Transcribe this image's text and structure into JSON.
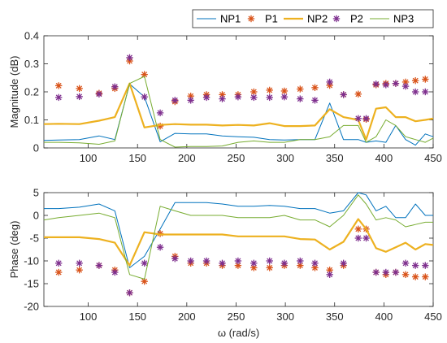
{
  "chart_data": [
    {
      "type": "line",
      "ylabel": "Magnitude (dB)",
      "ylim": [
        0,
        0.4
      ],
      "yticks": [
        "0",
        "0.1",
        "0.2",
        "0.3",
        "0.4"
      ],
      "xticks": [
        {
          "label": "100",
          "value": 100
        },
        {
          "label": "150",
          "value": 150
        },
        {
          "label": "200",
          "value": 200
        },
        {
          "label": "250",
          "value": 250
        },
        {
          "label": "300",
          "value": 300
        },
        {
          "label": "350",
          "value": 350
        },
        {
          "label": "400",
          "value": 400
        },
        {
          "label": "450",
          "value": 450
        }
      ],
      "xlim": [
        55,
        450
      ],
      "series": [
        {
          "name": "NP1",
          "kind": "line",
          "color": "#0072BD",
          "width": 1,
          "x": [
            55,
            70,
            91,
            111,
            127,
            142,
            157,
            173,
            188,
            204,
            220,
            236,
            252,
            268,
            284,
            299,
            315,
            330,
            345,
            359,
            374,
            382,
            392,
            402,
            412,
            422,
            432,
            442,
            450
          ],
          "y": [
            0.027,
            0.028,
            0.03,
            0.043,
            0.03,
            0.228,
            0.182,
            0.022,
            0.052,
            0.05,
            0.05,
            0.043,
            0.04,
            0.038,
            0.03,
            0.028,
            0.03,
            0.03,
            0.16,
            0.03,
            0.03,
            0.02,
            0.025,
            0.02,
            0.08,
            0.03,
            0.01,
            0.05,
            0.04
          ]
        },
        {
          "name": "P1",
          "kind": "star",
          "color": "#D95319",
          "x": [
            70,
            91,
            111,
            127,
            142,
            157,
            173,
            188,
            204,
            220,
            236,
            252,
            268,
            284,
            299,
            315,
            330,
            345,
            359,
            374,
            382,
            392,
            402,
            412,
            422,
            432,
            442
          ],
          "y": [
            0.222,
            0.212,
            0.195,
            0.212,
            0.31,
            0.262,
            0.078,
            0.165,
            0.185,
            0.19,
            0.19,
            0.19,
            0.2,
            0.206,
            0.203,
            0.21,
            0.215,
            0.223,
            0.19,
            0.192,
            0.102,
            0.225,
            0.23,
            0.23,
            0.235,
            0.24,
            0.245
          ]
        },
        {
          "name": "NP2",
          "kind": "line",
          "color": "#EDB120",
          "width": 2.2,
          "x": [
            55,
            70,
            91,
            111,
            127,
            142,
            157,
            173,
            188,
            204,
            220,
            236,
            252,
            268,
            284,
            299,
            315,
            330,
            345,
            359,
            374,
            382,
            392,
            402,
            412,
            422,
            432,
            442,
            450
          ],
          "y": [
            0.085,
            0.086,
            0.085,
            0.097,
            0.11,
            0.23,
            0.073,
            0.082,
            0.085,
            0.083,
            0.083,
            0.08,
            0.082,
            0.08,
            0.088,
            0.078,
            0.078,
            0.08,
            0.138,
            0.11,
            0.1,
            0.03,
            0.14,
            0.145,
            0.11,
            0.11,
            0.095,
            0.1,
            0.105
          ]
        },
        {
          "name": "P2",
          "kind": "star",
          "color": "#7E2F8E",
          "x": [
            70,
            91,
            111,
            127,
            142,
            157,
            173,
            188,
            204,
            220,
            236,
            252,
            268,
            284,
            299,
            315,
            330,
            345,
            359,
            374,
            382,
            392,
            402,
            412,
            422,
            432,
            442
          ],
          "y": [
            0.18,
            0.183,
            0.192,
            0.218,
            0.322,
            0.182,
            0.125,
            0.17,
            0.17,
            0.18,
            0.175,
            0.182,
            0.18,
            0.18,
            0.182,
            0.175,
            0.17,
            0.235,
            0.19,
            0.105,
            0.105,
            0.228,
            0.225,
            0.23,
            0.22,
            0.2,
            0.2
          ]
        },
        {
          "name": "NP3",
          "kind": "line",
          "color": "#77AC30",
          "width": 1,
          "x": [
            55,
            70,
            91,
            111,
            127,
            142,
            157,
            173,
            188,
            204,
            220,
            236,
            252,
            268,
            284,
            299,
            315,
            330,
            345,
            359,
            374,
            382,
            392,
            402,
            412,
            422,
            432,
            442,
            450
          ],
          "y": [
            0.02,
            0.02,
            0.018,
            0.013,
            0.025,
            0.23,
            0.255,
            0.03,
            0.003,
            0.005,
            0.005,
            0.007,
            0.02,
            0.025,
            0.02,
            0.02,
            0.03,
            0.03,
            0.04,
            0.08,
            0.08,
            0.02,
            0.04,
            0.1,
            0.08,
            0.04,
            0.03,
            0.02,
            0.035
          ]
        }
      ]
    },
    {
      "type": "line",
      "ylabel": "Phase (deg)",
      "xlabel": "ω (rad/s)",
      "ylim": [
        -20,
        5
      ],
      "yticks": [
        "-20",
        "-15",
        "-10",
        "-5",
        "0",
        "5"
      ],
      "xticks": [
        {
          "label": "100",
          "value": 100
        },
        {
          "label": "150",
          "value": 150
        },
        {
          "label": "200",
          "value": 200
        },
        {
          "label": "250",
          "value": 250
        },
        {
          "label": "300",
          "value": 300
        },
        {
          "label": "350",
          "value": 350
        },
        {
          "label": "400",
          "value": 400
        },
        {
          "label": "450",
          "value": 450
        }
      ],
      "xlim": [
        55,
        450
      ],
      "series": [
        {
          "name": "NP1",
          "kind": "line",
          "color": "#0072BD",
          "width": 1,
          "x": [
            55,
            70,
            91,
            111,
            127,
            142,
            157,
            173,
            188,
            204,
            220,
            236,
            252,
            268,
            284,
            299,
            315,
            330,
            345,
            359,
            374,
            382,
            392,
            402,
            412,
            422,
            432,
            442,
            450
          ],
          "y": [
            1.5,
            1.5,
            1.8,
            2.5,
            1.0,
            -11.5,
            -9.0,
            -3.0,
            2.8,
            2.8,
            2.8,
            2.5,
            2.0,
            2.0,
            2.2,
            2.0,
            1.5,
            1.5,
            0.5,
            1.0,
            5.0,
            4.5,
            1.0,
            2.0,
            -0.5,
            -0.5,
            2.5,
            0.0,
            0.0
          ]
        },
        {
          "name": "P1",
          "kind": "star",
          "color": "#D95319",
          "x": [
            70,
            91,
            111,
            127,
            142,
            157,
            173,
            188,
            204,
            220,
            236,
            252,
            268,
            284,
            299,
            315,
            330,
            345,
            359,
            374,
            382,
            392,
            402,
            412,
            422,
            432,
            442
          ],
          "y": [
            -12.5,
            -12.0,
            -11.0,
            -12.0,
            -17.0,
            -14.5,
            -4.0,
            -9.0,
            -10.5,
            -10.5,
            -11.0,
            -11.0,
            -11.5,
            -11.5,
            -11.0,
            -11.0,
            -11.5,
            -12.0,
            -11.0,
            -3.0,
            -3.0,
            -12.5,
            -13.0,
            -12.5,
            -13.0,
            -13.5,
            -13.5
          ]
        },
        {
          "name": "NP2",
          "kind": "line",
          "color": "#EDB120",
          "width": 2.2,
          "x": [
            55,
            70,
            91,
            111,
            127,
            142,
            157,
            173,
            188,
            204,
            220,
            236,
            252,
            268,
            284,
            299,
            315,
            330,
            345,
            359,
            374,
            382,
            392,
            402,
            412,
            422,
            432,
            442,
            450
          ],
          "y": [
            -4.8,
            -4.8,
            -4.8,
            -5.2,
            -6.0,
            -11.0,
            -3.7,
            -4.2,
            -4.2,
            -4.2,
            -4.2,
            -4.2,
            -4.6,
            -4.6,
            -4.6,
            -4.6,
            -5.2,
            -5.3,
            -7.5,
            -5.8,
            -0.8,
            -3.0,
            -7.2,
            -8.0,
            -7.0,
            -6.0,
            -7.5,
            -6.3,
            -6.5
          ]
        },
        {
          "name": "P2",
          "kind": "star",
          "color": "#7E2F8E",
          "x": [
            70,
            91,
            111,
            127,
            142,
            157,
            173,
            188,
            204,
            220,
            236,
            252,
            268,
            284,
            299,
            315,
            330,
            345,
            359,
            374,
            382,
            392,
            402,
            412,
            422,
            432,
            442
          ],
          "y": [
            -10.5,
            -10.5,
            -11.0,
            -12.5,
            -17.0,
            -10.5,
            -7.0,
            -9.5,
            -10.0,
            -10.0,
            -10.5,
            -10.0,
            -10.5,
            -10.0,
            -10.5,
            -10.0,
            -10.5,
            -13.0,
            -10.5,
            -5.0,
            -5.0,
            -12.5,
            -12.5,
            -12.5,
            -10.5,
            -11.0,
            -11.0
          ]
        },
        {
          "name": "NP3",
          "kind": "line",
          "color": "#77AC30",
          "width": 1,
          "x": [
            55,
            70,
            91,
            111,
            127,
            142,
            157,
            173,
            188,
            204,
            220,
            236,
            252,
            268,
            284,
            299,
            315,
            330,
            345,
            359,
            374,
            382,
            392,
            402,
            412,
            422,
            432,
            442,
            450
          ],
          "y": [
            -1.0,
            -0.5,
            0.0,
            0.5,
            -0.5,
            -13.0,
            -14.0,
            2.0,
            1.0,
            0.0,
            0.0,
            0.0,
            -0.5,
            -0.5,
            -0.5,
            0.0,
            -1.0,
            -1.0,
            -2.5,
            0.0,
            4.5,
            2.5,
            -1.0,
            -0.5,
            -1.0,
            -2.5,
            -2.0,
            -1.5,
            -1.5
          ]
        }
      ]
    }
  ]
}
